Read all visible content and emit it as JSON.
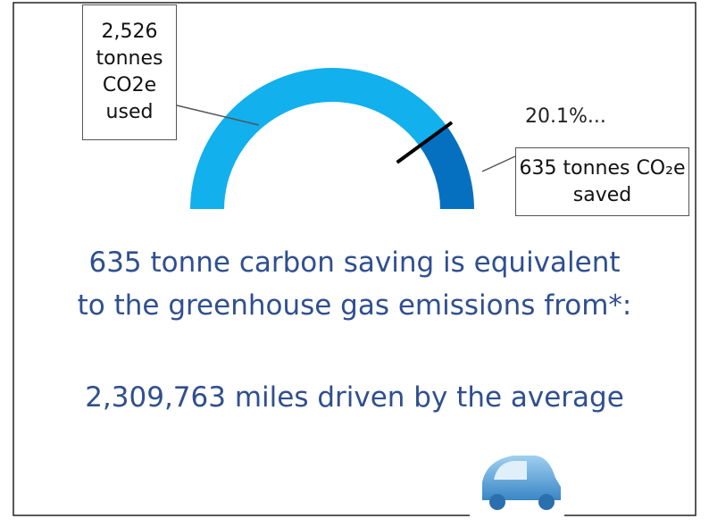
{
  "chart_data": {
    "type": "gauge",
    "values": [
      2526,
      635
    ],
    "value_labels": [
      "2,526 tonnes CO2e used",
      "635 tonnes CO₂e saved"
    ],
    "colors": [
      "#12b0ec",
      "#0670c0"
    ],
    "annotation": "20.1%..."
  },
  "text": {
    "lines": [
      "635 tonne carbon saving is equivalent",
      "to the greenhouse gas emissions from*:",
      "2,309,763 miles driven by the average"
    ]
  }
}
